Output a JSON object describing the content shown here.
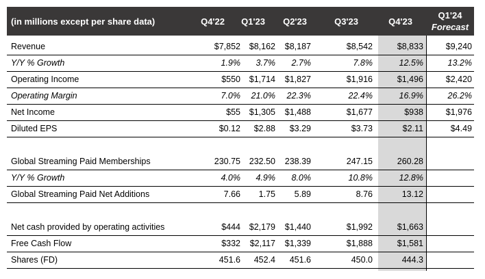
{
  "header": {
    "title": "(in millions except per share data)",
    "columns": [
      "Q4'22",
      "Q1'23",
      "Q2'23",
      "Q3'23",
      "Q4'23"
    ],
    "forecast_line1": "Q1'24",
    "forecast_line2": "Forecast"
  },
  "rows": [
    {
      "label": "Revenue",
      "style": "normal",
      "values": [
        "$7,852",
        "$8,162",
        "$8,187",
        "$8,542",
        "$8,833",
        "$9,240"
      ]
    },
    {
      "label": "Y/Y % Growth",
      "style": "italic",
      "values": [
        "1.9%",
        "3.7%",
        "2.7%",
        "7.8%",
        "12.5%",
        "13.2%"
      ]
    },
    {
      "label": "Operating Income",
      "style": "normal",
      "values": [
        "$550",
        "$1,714",
        "$1,827",
        "$1,916",
        "$1,496",
        "$2,420"
      ]
    },
    {
      "label": "Operating Margin",
      "style": "italic",
      "values": [
        "7.0%",
        "21.0%",
        "22.3%",
        "22.4%",
        "16.9%",
        "26.2%"
      ]
    },
    {
      "label": "Net Income",
      "style": "normal",
      "values": [
        "$55",
        "$1,305",
        "$1,488",
        "$1,677",
        "$938",
        "$1,976"
      ]
    },
    {
      "label": "Diluted EPS",
      "style": "normal",
      "values": [
        "$0.12",
        "$2.88",
        "$3.29",
        "$3.73",
        "$2.11",
        "$4.49"
      ]
    },
    {
      "label": "Global Streaming Paid Memberships",
      "style": "normal",
      "values": [
        "230.75",
        "232.50",
        "238.39",
        "247.15",
        "260.28",
        ""
      ]
    },
    {
      "label": "Y/Y % Growth",
      "style": "italic",
      "values": [
        "4.0%",
        "4.9%",
        "8.0%",
        "10.8%",
        "12.8%",
        ""
      ]
    },
    {
      "label": "Global Streaming Paid Net Additions",
      "style": "normal",
      "values": [
        "7.66",
        "1.75",
        "5.89",
        "8.76",
        "13.12",
        ""
      ]
    },
    {
      "label": "Net cash provided by operating activities",
      "style": "normal",
      "values": [
        "$444",
        "$2,179",
        "$1,440",
        "$1,992",
        "$1,663",
        ""
      ]
    },
    {
      "label": "Free Cash Flow",
      "style": "normal",
      "values": [
        "$332",
        "$2,117",
        "$1,339",
        "$1,888",
        "$1,581",
        ""
      ]
    },
    {
      "label": "Shares (FD)",
      "style": "normal",
      "values": [
        "451.6",
        "452.4",
        "451.6",
        "450.0",
        "444.3",
        ""
      ]
    }
  ]
}
